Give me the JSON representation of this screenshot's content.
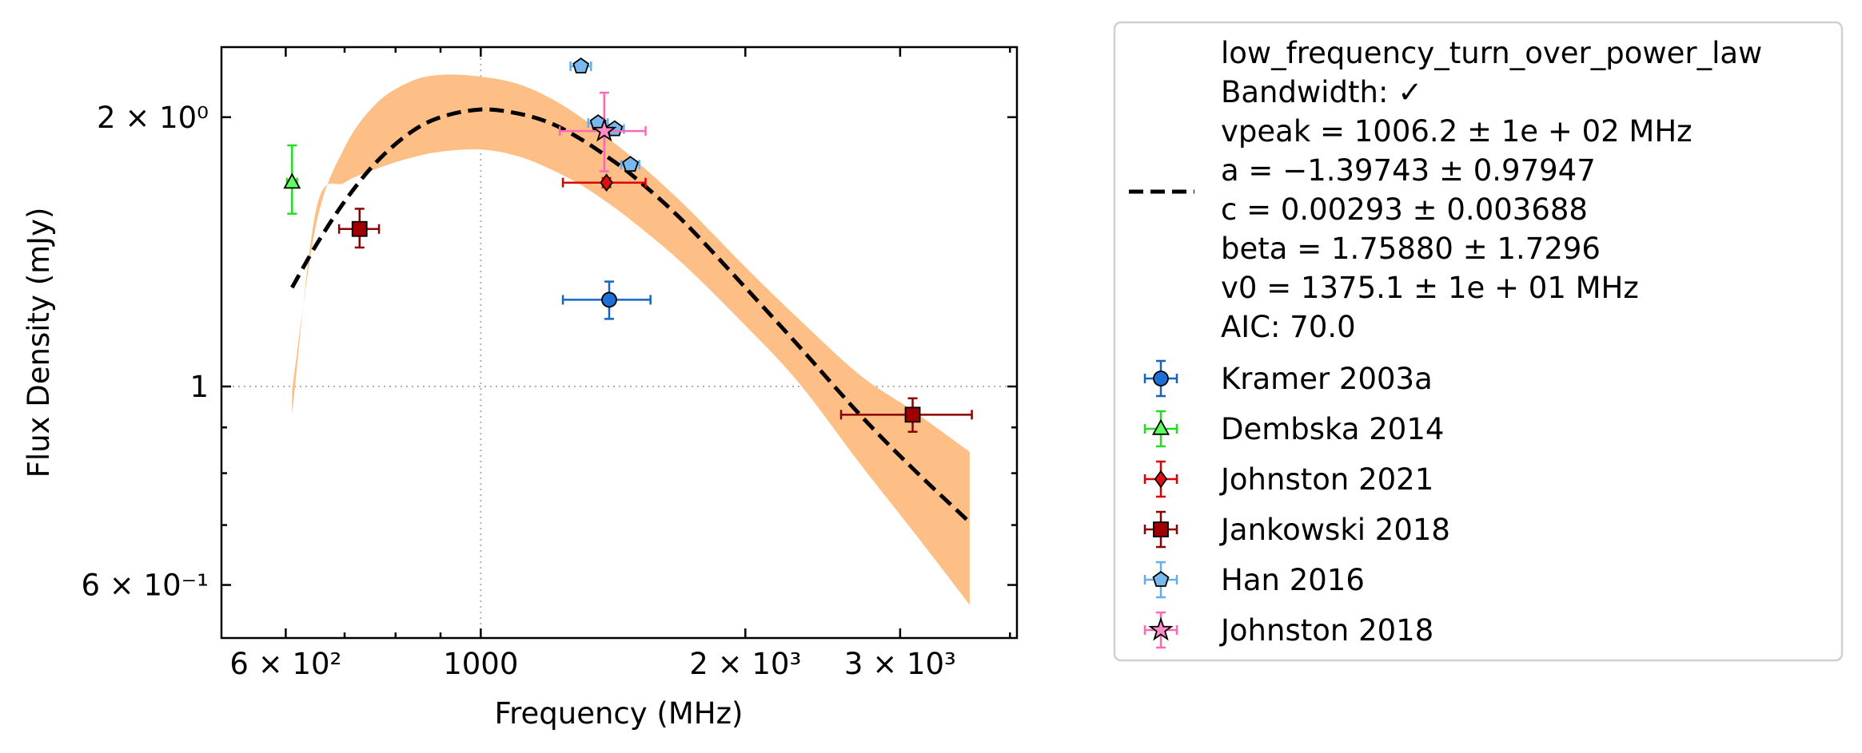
{
  "chart_data": {
    "type": "scatter",
    "xlabel": "Frequency (MHz)",
    "ylabel": "Flux Density (mJy)",
    "xscale": "log",
    "yscale": "log",
    "xlim": [
      507,
      4074
    ],
    "ylim": [
      0.5234,
      2.3953
    ],
    "grid": "dotted lines at major ticks 1000 MHz and 1 mJy",
    "x_ticks": [
      {
        "value": 600,
        "label": "6 × 10²"
      },
      {
        "value": 1000,
        "label": "1000"
      },
      {
        "value": 2000,
        "label": "2 × 10³"
      },
      {
        "value": 3000,
        "label": "3 × 10³"
      }
    ],
    "y_ticks": [
      {
        "value": 0.6,
        "label": "6 × 10⁻¹"
      },
      {
        "value": 1,
        "label": "1"
      },
      {
        "value": 2,
        "label": "2 × 10⁰"
      }
    ],
    "fit": {
      "model_lines": [
        "low_frequency_turn_over_power_law",
        "Bandwidth: ✓",
        "vpeak = 1006.2 ± 1e + 02 MHz",
        "a = −1.39743 ± 0.97947",
        "c = 0.00293 ± 0.003688",
        "beta = 1.75880 ± 1.7296",
        "v0 = 1375.1 ± 1e + 01 MHz",
        "AIC: 70.0"
      ],
      "line_color": "#000000",
      "band_color": "#fdbf86",
      "curve": {
        "x": [
          610,
          650,
          700,
          760,
          830,
          900,
          1000,
          1100,
          1200,
          1300,
          1400,
          1500,
          1700,
          2000,
          2300,
          2700,
          3100,
          3600
        ],
        "y": [
          1.29,
          1.44,
          1.61,
          1.78,
          1.92,
          2.0,
          2.04,
          2.02,
          1.97,
          1.89,
          1.8,
          1.71,
          1.53,
          1.29,
          1.11,
          0.93,
          0.81,
          0.705
        ]
      },
      "band_upper": [
        0.99,
        1.52,
        1.85,
        2.07,
        2.19,
        2.23,
        2.22,
        2.18,
        2.1,
        2.0,
        1.89,
        1.79,
        1.6,
        1.36,
        1.19,
        1.03,
        0.94,
        0.845
      ],
      "band_lower": [
        0.93,
        1.58,
        1.69,
        1.75,
        1.8,
        1.83,
        1.84,
        1.81,
        1.75,
        1.68,
        1.6,
        1.52,
        1.37,
        1.17,
        1.01,
        0.82,
        0.69,
        0.57
      ]
    },
    "series": [
      {
        "name": "Kramer 2003a",
        "marker": "circle",
        "color": "#1565c0",
        "fill": "#1e6fd6",
        "points": [
          {
            "x": 1400,
            "y": 1.25,
            "xerr": [
              1240,
              1560
            ],
            "yerr": [
              1.19,
              1.31
            ]
          }
        ]
      },
      {
        "name": "Dembska 2014",
        "marker": "triangle",
        "color": "#22dd22",
        "fill": "#5fff5f",
        "points": [
          {
            "x": 610,
            "y": 1.69,
            "xerr": [
              602,
              618
            ],
            "yerr": [
              1.56,
              1.86
            ]
          }
        ]
      },
      {
        "name": "Johnston 2021",
        "marker": "diamond",
        "color": "#dd0000",
        "fill": "#e01010",
        "points": [
          {
            "x": 1390,
            "y": 1.69,
            "xerr": [
              1240,
              1540
            ],
            "yerr": [
              1.67,
              1.71
            ]
          }
        ]
      },
      {
        "name": "Jankowski 2018",
        "marker": "square",
        "color": "#8b0000",
        "fill": "#a00000",
        "points": [
          {
            "x": 728,
            "y": 1.5,
            "xerr": [
              690,
              766
            ],
            "yerr": [
              1.43,
              1.58
            ]
          },
          {
            "x": 3100,
            "y": 0.93,
            "xerr": [
              2570,
              3620
            ],
            "yerr": [
              0.89,
              0.97
            ]
          }
        ]
      },
      {
        "name": "Han 2016",
        "marker": "pentagon",
        "color": "#64aef0",
        "fill": "#78b8ee",
        "points": [
          {
            "x": 1300,
            "y": 2.28,
            "xerr": [
              1265,
              1335
            ],
            "yerr": [
              2.26,
              2.3
            ]
          },
          {
            "x": 1360,
            "y": 1.97,
            "xerr": [
              1325,
              1395
            ],
            "yerr": [
              1.95,
              1.99
            ]
          },
          {
            "x": 1420,
            "y": 1.94,
            "xerr": [
              1385,
              1455
            ],
            "yerr": [
              1.92,
              1.96
            ]
          },
          {
            "x": 1480,
            "y": 1.77,
            "xerr": [
              1445,
              1515
            ],
            "yerr": [
              1.75,
              1.79
            ]
          }
        ]
      },
      {
        "name": "Johnston 2018",
        "marker": "star",
        "color": "#ff69b4",
        "fill": "#ff8cc6",
        "points": [
          {
            "x": 1382,
            "y": 1.93,
            "xerr": [
              1230,
              1540
            ],
            "yerr": [
              1.74,
              2.13
            ]
          }
        ]
      }
    ],
    "legend": "outside-right"
  }
}
